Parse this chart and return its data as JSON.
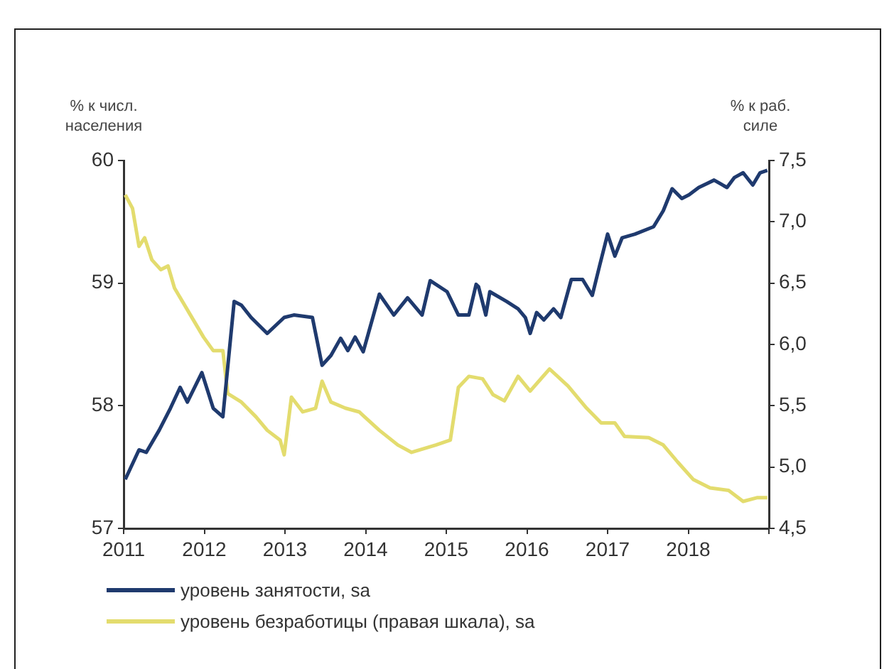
{
  "chart_data": {
    "type": "line",
    "ylabel": "% к числ. населения",
    "y2label": "% к раб. силе",
    "xlim": [
      2011,
      2019
    ],
    "xticks": [
      2011,
      2012,
      2013,
      2014,
      2015,
      2016,
      2017,
      2018,
      {
        "value": 2019,
        "label": null
      }
    ],
    "ylim": [
      57,
      60
    ],
    "yticks": [
      57,
      58,
      59,
      60
    ],
    "y2lim": [
      4.5,
      7.5
    ],
    "y2ticks": [
      {
        "value": 4.5,
        "label": "4,5"
      },
      {
        "value": 5,
        "label": "5,0"
      },
      {
        "value": 5.5,
        "label": "5,5"
      },
      {
        "value": 6,
        "label": "6,0"
      },
      {
        "value": 6.5,
        "label": "6,5"
      },
      {
        "value": 7,
        "label": "7,0"
      },
      {
        "value": 7.5,
        "label": "7,5"
      }
    ],
    "grid": false,
    "legend": "bottom",
    "marker": "none",
    "line_style": "solid",
    "series": [
      {
        "name": "уровень занятости, sa",
        "color": "#1f3a6e",
        "x": [
          2011.02,
          2011.19,
          2011.28,
          2011.44,
          2011.58,
          2011.7,
          2011.79,
          2011.97,
          2012.11,
          2012.23,
          2012.37,
          2012.46,
          2012.58,
          2012.78,
          2012.99,
          2013.11,
          2013.34,
          2013.46,
          2013.57,
          2013.69,
          2013.78,
          2013.87,
          2013.97,
          2014.17,
          2014.35,
          2014.52,
          2014.7,
          2014.8,
          2015.01,
          2015.15,
          2015.28,
          2015.37,
          2015.4,
          2015.49,
          2015.54,
          2015.75,
          2015.89,
          2015.98,
          2016.04,
          2016.12,
          2016.21,
          2016.33,
          2016.42,
          2016.55,
          2016.69,
          2016.81,
          2016.9,
          2017,
          2017.09,
          2017.18,
          2017.34,
          2017.57,
          2017.69,
          2017.8,
          2017.92,
          2018.01,
          2018.13,
          2018.32,
          2018.48,
          2018.57,
          2018.68,
          2018.8,
          2018.89,
          2018.98
        ],
        "values": [
          57.4,
          57.64,
          57.62,
          57.8,
          57.98,
          58.15,
          58.03,
          58.27,
          57.98,
          57.91,
          58.85,
          58.82,
          58.72,
          58.59,
          58.72,
          58.74,
          58.72,
          58.33,
          58.41,
          58.55,
          58.45,
          58.56,
          58.44,
          58.91,
          58.74,
          58.88,
          58.74,
          59.02,
          58.93,
          58.74,
          58.74,
          58.99,
          58.97,
          58.74,
          58.93,
          58.85,
          58.79,
          58.72,
          58.59,
          58.76,
          58.7,
          58.79,
          58.72,
          59.03,
          59.03,
          58.9,
          59.14,
          59.4,
          59.22,
          59.37,
          59.4,
          59.46,
          59.59,
          59.77,
          59.69,
          59.72,
          59.78,
          59.84,
          59.78,
          59.86,
          59.9,
          59.8,
          59.9,
          59.92
        ]
      },
      {
        "name": "уровень безработицы (правая шкала), sa",
        "color": "#e3dc6e",
        "axis": "y2",
        "x": [
          2011.02,
          2011.11,
          2011.19,
          2011.26,
          2011.35,
          2011.46,
          2011.55,
          2011.63,
          2011.81,
          2011.99,
          2012.11,
          2012.23,
          2012.29,
          2012.46,
          2012.64,
          2012.78,
          2012.94,
          2012.99,
          2013.08,
          2013.22,
          2013.38,
          2013.46,
          2013.57,
          2013.75,
          2013.92,
          2014.17,
          2014.4,
          2014.57,
          2014.87,
          2015.05,
          2015.15,
          2015.28,
          2015.45,
          2015.58,
          2015.72,
          2015.89,
          2016.04,
          2016.28,
          2016.51,
          2016.74,
          2016.92,
          2017.09,
          2017.21,
          2017.51,
          2017.69,
          2017.87,
          2018.06,
          2018.27,
          2018.5,
          2018.68,
          2018.85,
          2018.98
        ],
        "values": [
          7.22,
          7.11,
          6.8,
          6.87,
          6.69,
          6.61,
          6.64,
          6.46,
          6.26,
          6.06,
          5.95,
          5.95,
          5.6,
          5.53,
          5.41,
          5.3,
          5.22,
          5.1,
          5.57,
          5.45,
          5.48,
          5.7,
          5.53,
          5.48,
          5.45,
          5.3,
          5.18,
          5.12,
          5.18,
          5.22,
          5.65,
          5.74,
          5.72,
          5.59,
          5.54,
          5.74,
          5.62,
          5.8,
          5.66,
          5.48,
          5.36,
          5.36,
          5.25,
          5.24,
          5.18,
          5.04,
          4.9,
          4.83,
          4.81,
          4.72,
          4.75,
          4.75
        ]
      }
    ]
  }
}
